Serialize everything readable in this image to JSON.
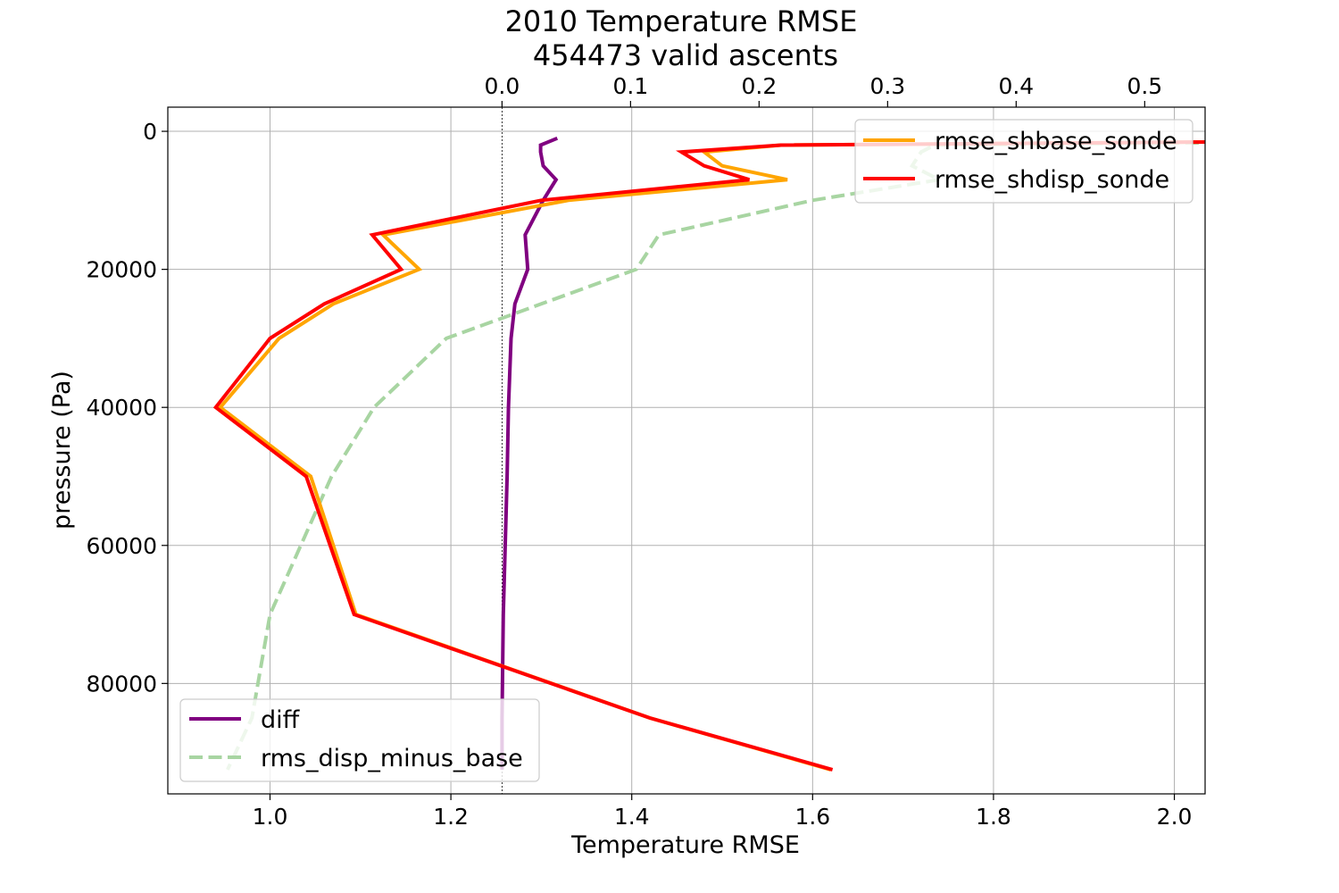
{
  "chart_data": {
    "type": "line",
    "title_line1": "2010 Temperature RMSE",
    "title_line2": "454473 valid ascents",
    "xlabel": "Temperature RMSE",
    "ylabel": "pressure (Pa)",
    "x_bottom_lim": [
      0.887,
      2.034
    ],
    "x_top_lim": [
      -0.26,
      0.547
    ],
    "ylim": [
      96000,
      -3500
    ],
    "y_inverted": true,
    "grid": true,
    "bottom_ticks": [
      1.0,
      1.2,
      1.4,
      1.6,
      1.8,
      2.0
    ],
    "bottom_tick_labels": [
      "1.0",
      "1.2",
      "1.4",
      "1.6",
      "1.8",
      "2.0"
    ],
    "top_ticks": [
      0.0,
      0.1,
      0.2,
      0.3,
      0.4,
      0.5
    ],
    "top_tick_labels": [
      "0.0",
      "0.1",
      "0.2",
      "0.3",
      "0.4",
      "0.5"
    ],
    "y_ticks": [
      0,
      20000,
      40000,
      60000,
      80000
    ],
    "y_tick_labels": [
      "0",
      "20000",
      "40000",
      "60000",
      "80000"
    ],
    "zero_line_top_axis": 0.0,
    "pressure": [
      1000,
      2000,
      3000,
      5000,
      7000,
      10000,
      15000,
      20000,
      25000,
      30000,
      40000,
      50000,
      70000,
      85000,
      92500
    ],
    "series": [
      {
        "name": "rmse_shbase_sonde",
        "axis": "bottom",
        "color": "#ffa500",
        "dash": "solid",
        "values": [
          2.6,
          1.565,
          1.48,
          1.5,
          1.572,
          1.33,
          1.125,
          1.165,
          1.07,
          1.01,
          0.945,
          1.045,
          1.095,
          1.42,
          1.62
        ]
      },
      {
        "name": "rmse_shdisp_sonde",
        "axis": "bottom",
        "color": "#ff0000",
        "dash": "solid",
        "values": [
          2.6,
          1.565,
          1.455,
          1.48,
          1.53,
          1.3,
          1.113,
          1.145,
          1.06,
          1.0,
          0.94,
          1.04,
          1.093,
          1.42,
          1.622
        ]
      },
      {
        "name": "diff",
        "axis": "top",
        "color": "#800080",
        "dash": "solid",
        "values": [
          0.043,
          0.03,
          0.03,
          0.032,
          0.042,
          0.032,
          0.018,
          0.02,
          0.01,
          0.007,
          0.005,
          0.004,
          0.001,
          0.0,
          0.0
        ]
      },
      {
        "name": "rms_disp_minus_base",
        "axis": "bottom",
        "color": "#a8d5a2",
        "dash": "dashed",
        "values": [
          2.6,
          1.735,
          1.72,
          1.71,
          1.74,
          1.6,
          1.43,
          1.405,
          1.3,
          1.195,
          1.115,
          1.068,
          1.0,
          0.98,
          0.953
        ]
      }
    ],
    "legend_top_right": [
      "rmse_shbase_sonde",
      "rmse_shdisp_sonde"
    ],
    "legend_bottom_left": [
      "diff",
      "rms_disp_minus_base"
    ]
  }
}
